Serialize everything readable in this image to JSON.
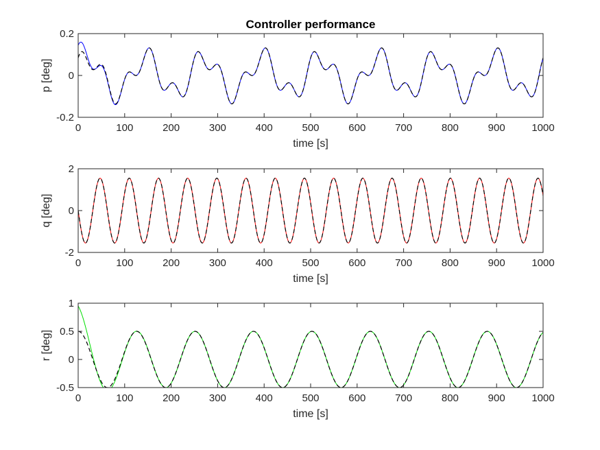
{
  "title": "Controller performance",
  "chart_data": [
    {
      "type": "line",
      "ylabel": "p [deg]",
      "xlabel": "time [s]",
      "xlim": [
        0,
        1000
      ],
      "ylim": [
        -0.2,
        0.2
      ],
      "xticks": [
        0,
        100,
        200,
        300,
        400,
        500,
        600,
        700,
        800,
        900,
        1000
      ],
      "yticks": [
        -0.2,
        0,
        0.2
      ],
      "ytick_labels": [
        "-0.2",
        "0",
        "0.2"
      ],
      "grid": false,
      "series": [
        {
          "role": "actual",
          "color": "#0000ff",
          "style": "solid",
          "components": [
            {
              "amp": 0.0875,
              "period": 125,
              "phase": 0.5
            },
            {
              "amp": 0.05,
              "period": 50,
              "phase": 1.0
            }
          ],
          "initial_offset": 0.0,
          "initial_transient": {
            "amp": 0.06,
            "duration": 90
          }
        },
        {
          "role": "reference",
          "color": "#000000",
          "style": "dashed",
          "components": [
            {
              "amp": 0.0875,
              "period": 125,
              "phase": 0.5
            },
            {
              "amp": 0.05,
              "period": 50,
              "phase": 1.0
            }
          ]
        }
      ]
    },
    {
      "type": "line",
      "ylabel": "q [deg]",
      "xlabel": "time [s]",
      "xlim": [
        0,
        1000
      ],
      "ylim": [
        -2,
        2
      ],
      "xticks": [
        0,
        100,
        200,
        300,
        400,
        500,
        600,
        700,
        800,
        900,
        1000
      ],
      "yticks": [
        -2,
        0,
        2
      ],
      "ytick_labels": [
        "-2",
        "0",
        "2"
      ],
      "grid": false,
      "series": [
        {
          "role": "actual",
          "color": "#ff0000",
          "style": "solid",
          "components": [
            {
              "amp": 1.55,
              "period": 62.8,
              "phase": 3.1416
            }
          ]
        },
        {
          "role": "reference",
          "color": "#000000",
          "style": "dashed",
          "components": [
            {
              "amp": 1.55,
              "period": 62.8,
              "phase": 3.1416
            }
          ]
        }
      ]
    },
    {
      "type": "line",
      "ylabel": "r [deg]",
      "xlabel": "time [s]",
      "xlim": [
        0,
        1000
      ],
      "ylim": [
        -0.5,
        1
      ],
      "xticks": [
        0,
        100,
        200,
        300,
        400,
        500,
        600,
        700,
        800,
        900,
        1000
      ],
      "yticks": [
        -0.5,
        0,
        0.5,
        1
      ],
      "ytick_labels": [
        "-0.5",
        "0",
        "0.5",
        "1"
      ],
      "grid": false,
      "series": [
        {
          "role": "actual",
          "color": "#00dd00",
          "style": "solid",
          "components": [
            {
              "amp": 0.5,
              "period": 125.7,
              "phase": 1.5708
            }
          ],
          "initial_transient": {
            "amp": 0.45,
            "duration": 100
          }
        },
        {
          "role": "reference",
          "color": "#000000",
          "style": "dashed",
          "components": [
            {
              "amp": 0.5,
              "period": 125.7,
              "phase": 1.5708
            }
          ]
        }
      ]
    }
  ]
}
